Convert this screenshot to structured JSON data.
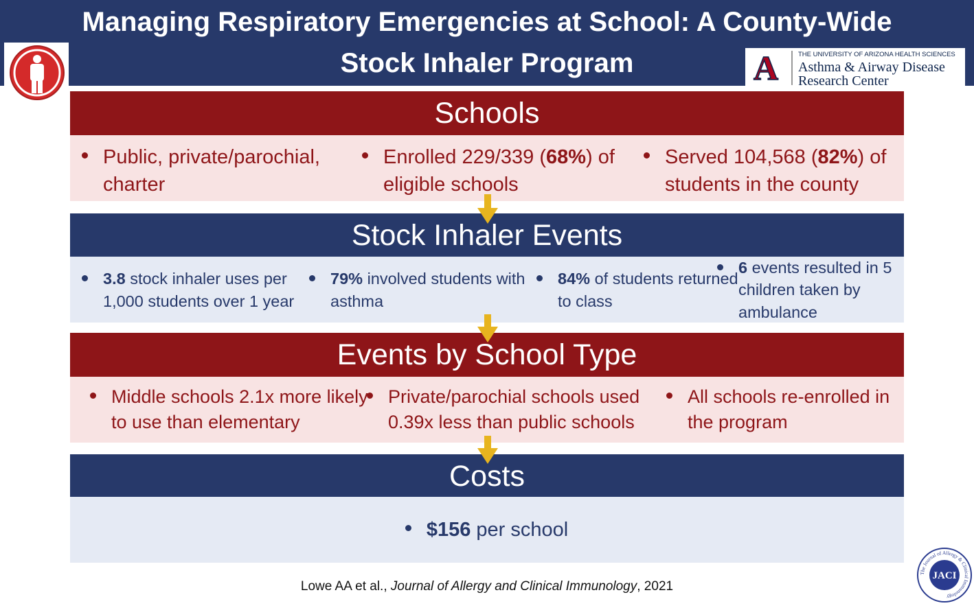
{
  "header": {
    "title_lines": [
      "Managing Respiratory Emergencies at School: A County-Wide",
      "Stock Inhaler Program"
    ]
  },
  "logo": {
    "letter": "A",
    "line1": "THE UNIVERSITY OF ARIZONA HEALTH SCIENCES",
    "line2": "Asthma & Airway Disease",
    "line3": "Research Center"
  },
  "sections": [
    {
      "title": "Schools",
      "theme": "red",
      "items": [
        [
          {
            "text": "Public, private/parochial, charter"
          }
        ],
        [
          {
            "text": "Enrolled 229/339 ("
          },
          {
            "text": "68%",
            "bold": true
          },
          {
            "text": ") of eligible schools"
          }
        ],
        [
          {
            "text": "Served 104,568 ("
          },
          {
            "text": "82%",
            "bold": true
          },
          {
            "text": ") of students in the county"
          }
        ]
      ]
    },
    {
      "title": "Stock Inhaler Events",
      "theme": "navy",
      "items": [
        [
          {
            "text": "3.8",
            "bold": true
          },
          {
            "text": " stock inhaler uses per 1,000 students over 1 year"
          }
        ],
        [
          {
            "text": "79%",
            "bold": true
          },
          {
            "text": " involved students with asthma"
          }
        ],
        [
          {
            "text": "84%",
            "bold": true
          },
          {
            "text": " of students returned to class"
          }
        ],
        [
          {
            "text": "6",
            "bold": true
          },
          {
            "text": " events resulted in 5 children taken by ambulance"
          }
        ]
      ]
    },
    {
      "title": "Events by School Type",
      "theme": "red",
      "items": [
        [
          {
            "text": "Middle schools 2.1x more likely to use than elementary"
          }
        ],
        [
          {
            "text": "Private/parochial schools used 0.39x less than public schools"
          }
        ],
        [
          {
            "text": "All schools re-enrolled in the program"
          }
        ]
      ]
    },
    {
      "title": "Costs",
      "theme": "navy",
      "items": [
        [
          {
            "text": "$156",
            "bold": true
          },
          {
            "text": " per school"
          }
        ]
      ]
    }
  ],
  "citation": [
    {
      "text": "Lowe AA et al., "
    },
    {
      "text": "Journal of Allergy and Clinical Immunology",
      "italic": true
    },
    {
      "text": ", 2021"
    }
  ],
  "journal_badge": {
    "abbr": "JACI",
    "ring": "The Journal of Allergy & Clinical Immunology"
  }
}
